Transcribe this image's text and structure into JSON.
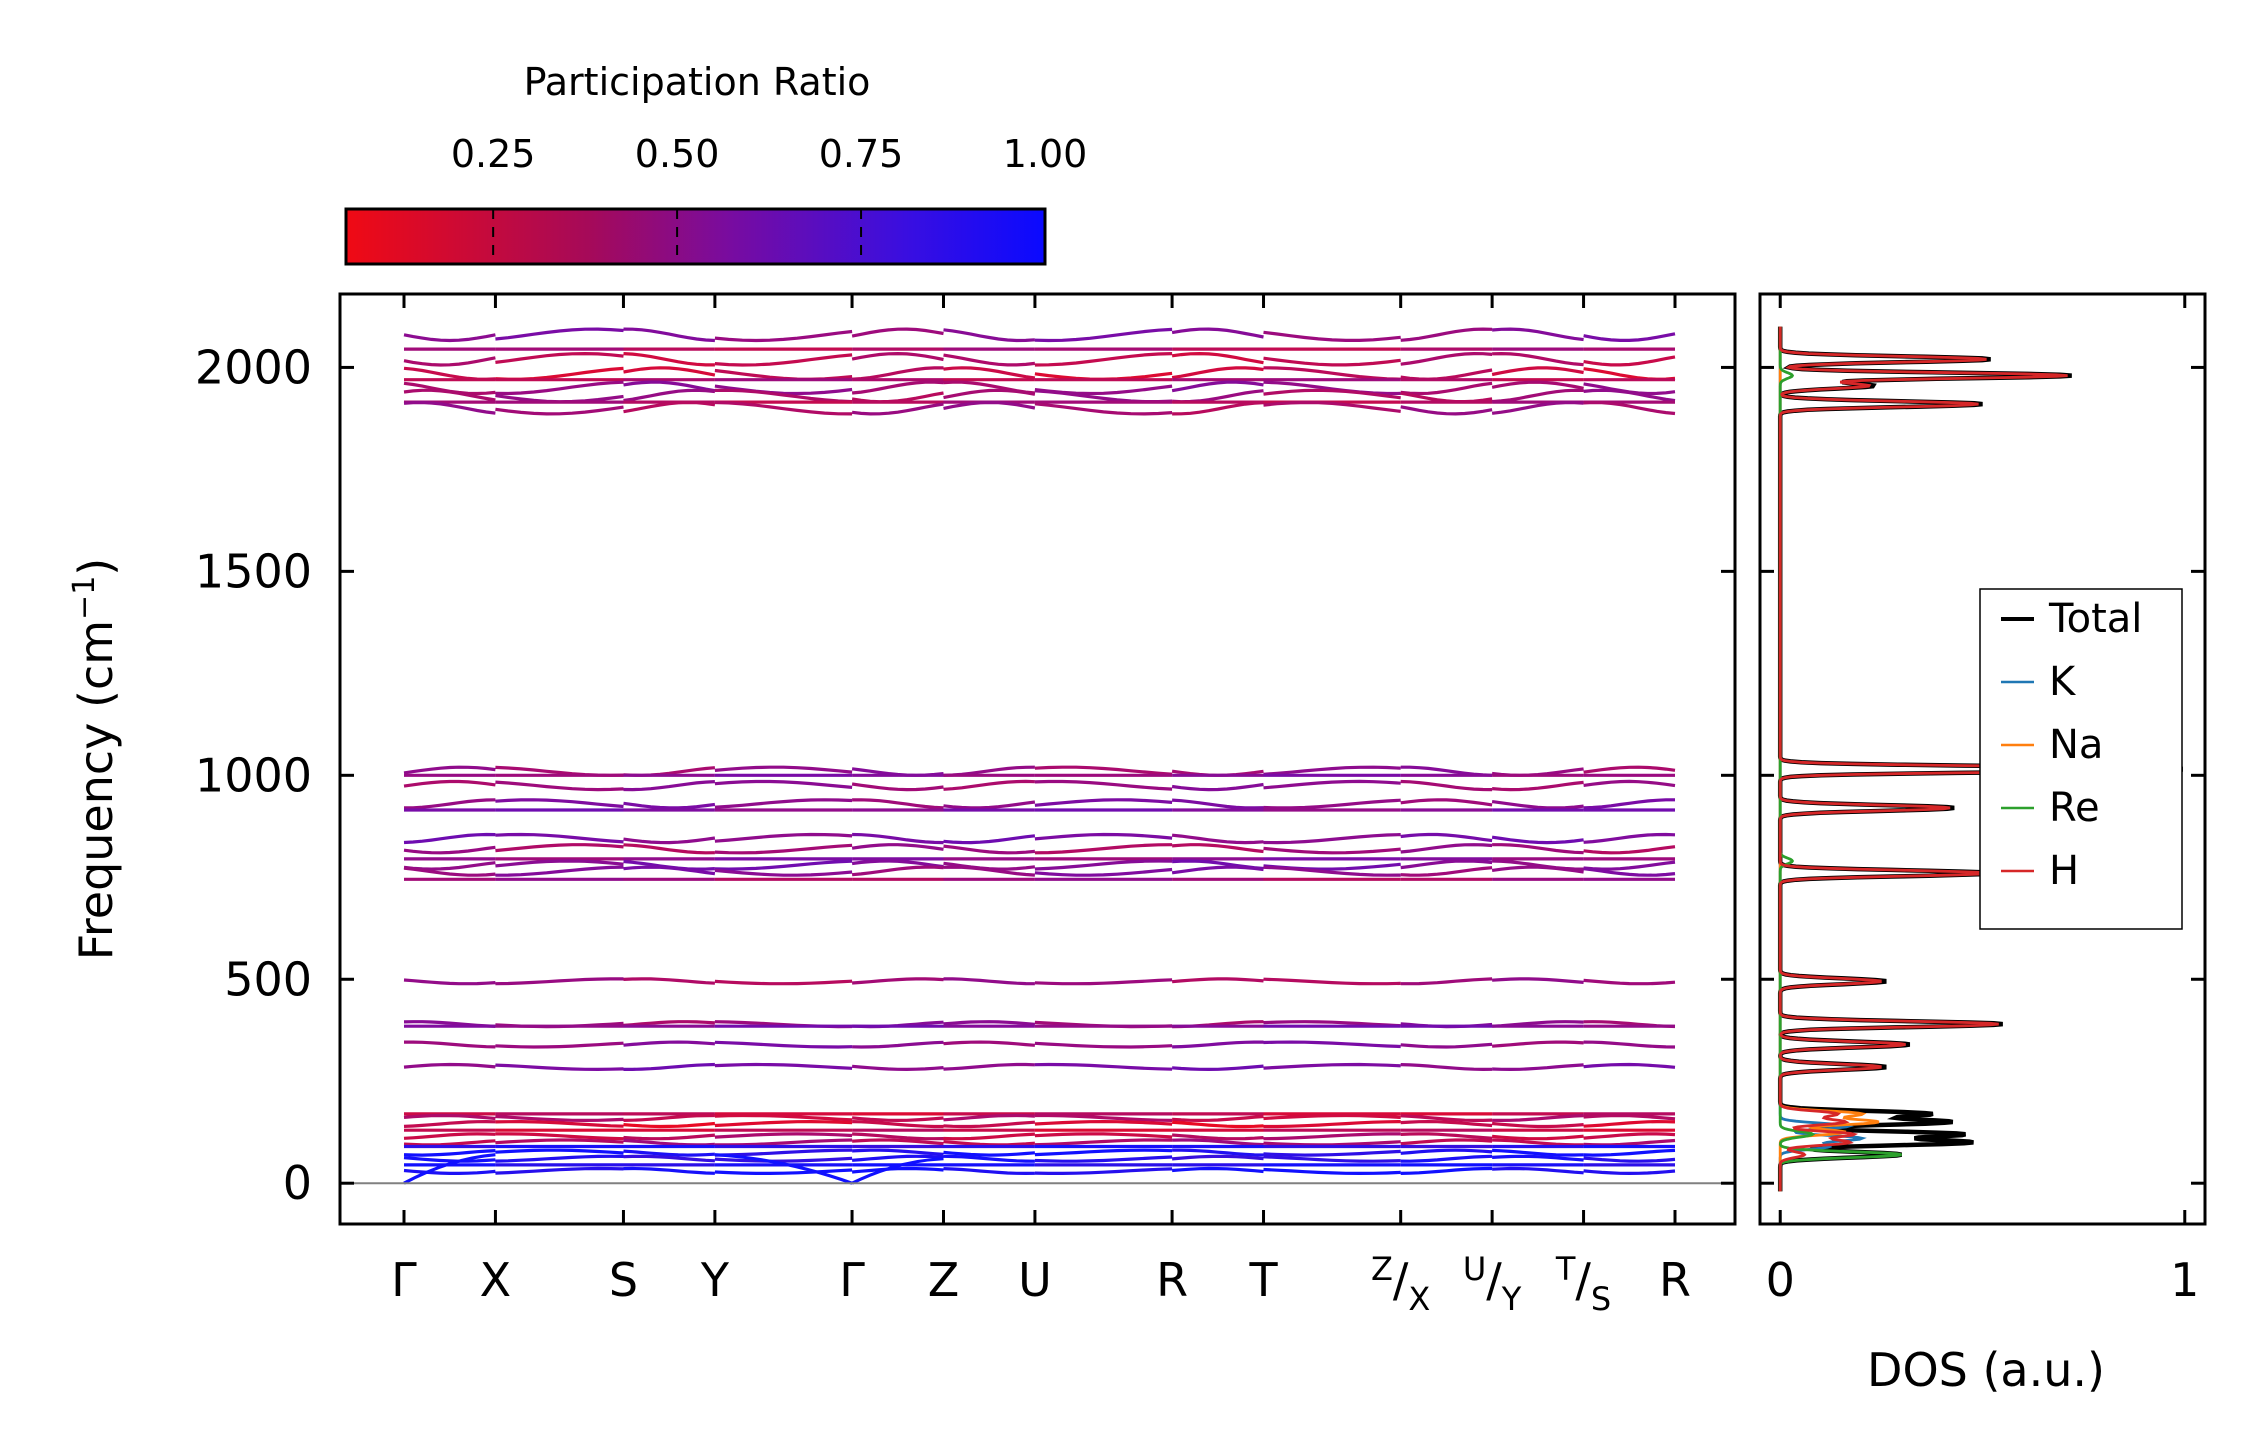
{
  "colorbar": {
    "title": "Participation Ratio",
    "ticks": [
      "0.25",
      "0.50",
      "0.75",
      "1.00"
    ],
    "tick_values": [
      0.25,
      0.5,
      0.75,
      1.0
    ],
    "range": [
      0.05,
      1.0
    ],
    "colors": {
      "low": "#ee0a1e",
      "mid": "#7a0ca6",
      "high": "#1010ff"
    }
  },
  "chart_data": [
    {
      "type": "line",
      "title": "",
      "ylabel": "Frequency (cm",
      "ylabel_sup": "−1",
      "ylabel_close": ")",
      "ylim": [
        -100,
        2180
      ],
      "yticks": [
        "0",
        "500",
        "1000",
        "1500",
        "2000"
      ],
      "ytick_values": [
        0,
        500,
        1000,
        1500,
        2000
      ],
      "kpath_labels": [
        {
          "main": "Γ"
        },
        {
          "main": "X"
        },
        {
          "main": "S"
        },
        {
          "main": "Y"
        },
        {
          "main": "Γ"
        },
        {
          "main": "Z"
        },
        {
          "main": "U"
        },
        {
          "main": "R"
        },
        {
          "main": "T"
        },
        {
          "sup": "Z",
          "main": "/",
          "sub": "X"
        },
        {
          "sup": "U",
          "main": "/",
          "sub": "Y"
        },
        {
          "sup": "T",
          "main": "/",
          "sub": "S"
        },
        {
          "main": "R"
        }
      ],
      "kpath_positions": [
        0,
        1,
        2.4,
        3.4,
        4.9,
        5.9,
        6.9,
        8.4,
        9.4,
        10.9,
        11.9,
        12.9,
        13.9
      ],
      "zero_line": 0,
      "bands": [
        {
          "freq": 2080,
          "pr": 0.45
        },
        {
          "freq": 2045,
          "pr": 0.3
        },
        {
          "freq": 2020,
          "pr": 0.25
        },
        {
          "freq": 1985,
          "pr": 0.2
        },
        {
          "freq": 1970,
          "pr": 0.3
        },
        {
          "freq": 1950,
          "pr": 0.4
        },
        {
          "freq": 1930,
          "pr": 0.35
        },
        {
          "freq": 1915,
          "pr": 0.3
        },
        {
          "freq": 1900,
          "pr": 0.35
        },
        {
          "freq": 1010,
          "pr": 0.4
        },
        {
          "freq": 1000,
          "pr": 0.45
        },
        {
          "freq": 975,
          "pr": 0.4
        },
        {
          "freq": 930,
          "pr": 0.45
        },
        {
          "freq": 915,
          "pr": 0.5
        },
        {
          "freq": 845,
          "pr": 0.5
        },
        {
          "freq": 820,
          "pr": 0.35
        },
        {
          "freq": 795,
          "pr": 0.45
        },
        {
          "freq": 780,
          "pr": 0.5
        },
        {
          "freq": 765,
          "pr": 0.45
        },
        {
          "freq": 745,
          "pr": 0.35
        },
        {
          "freq": 495,
          "pr": 0.35
        },
        {
          "freq": 390,
          "pr": 0.4
        },
        {
          "freq": 385,
          "pr": 0.5
        },
        {
          "freq": 340,
          "pr": 0.45
        },
        {
          "freq": 285,
          "pr": 0.5
        },
        {
          "freq": 170,
          "pr": 0.2
        },
        {
          "freq": 160,
          "pr": 0.25
        },
        {
          "freq": 145,
          "pr": 0.15
        },
        {
          "freq": 130,
          "pr": 0.2
        },
        {
          "freq": 115,
          "pr": 0.25
        },
        {
          "freq": 100,
          "pr": 0.3
        },
        {
          "freq": 90,
          "pr": 0.9
        },
        {
          "freq": 75,
          "pr": 0.95
        },
        {
          "freq": 60,
          "pr": 0.9
        },
        {
          "freq": 45,
          "pr": 0.95
        },
        {
          "freq": 30,
          "pr": 0.98
        }
      ]
    },
    {
      "type": "line",
      "title": "",
      "xlabel": "DOS (a.u.)",
      "xlim": [
        -0.05,
        1.05
      ],
      "xticks": [
        "0",
        "1"
      ],
      "xtick_values": [
        0,
        1
      ],
      "ylim": [
        -100,
        2180
      ],
      "legend_position": "center-right",
      "series": [
        {
          "name": "Total",
          "color": "#000000",
          "peaks": [
            [
              2020,
              0.52
            ],
            [
              1980,
              0.72
            ],
            [
              1955,
              0.23
            ],
            [
              1910,
              0.5
            ],
            [
              1015,
              1.0
            ],
            [
              920,
              0.43
            ],
            [
              760,
              0.53
            ],
            [
              495,
              0.26
            ],
            [
              390,
              0.55
            ],
            [
              340,
              0.32
            ],
            [
              285,
              0.26
            ],
            [
              170,
              0.37
            ],
            [
              150,
              0.42
            ],
            [
              120,
              0.45
            ],
            [
              100,
              0.47
            ],
            [
              70,
              0.3
            ]
          ]
        },
        {
          "name": "K",
          "color": "#1f77b4",
          "peaks": [
            [
              140,
              0.17
            ],
            [
              110,
              0.2
            ],
            [
              90,
              0.12
            ]
          ]
        },
        {
          "name": "Na",
          "color": "#ff7f0e",
          "peaks": [
            [
              170,
              0.2
            ],
            [
              150,
              0.24
            ],
            [
              125,
              0.16
            ]
          ]
        },
        {
          "name": "Re",
          "color": "#2ca02c",
          "peaks": [
            [
              1980,
              0.03
            ],
            [
              790,
              0.03
            ],
            [
              120,
              0.08
            ],
            [
              70,
              0.3
            ]
          ]
        },
        {
          "name": "H",
          "color": "#d62728",
          "peaks": [
            [
              2020,
              0.51
            ],
            [
              1980,
              0.71
            ],
            [
              1955,
              0.22
            ],
            [
              1910,
              0.49
            ],
            [
              1015,
              0.99
            ],
            [
              920,
              0.42
            ],
            [
              760,
              0.52
            ],
            [
              495,
              0.25
            ],
            [
              390,
              0.54
            ],
            [
              340,
              0.31
            ],
            [
              285,
              0.25
            ],
            [
              170,
              0.14
            ],
            [
              150,
              0.16
            ],
            [
              120,
              0.18
            ],
            [
              100,
              0.17
            ],
            [
              70,
              0.06
            ]
          ]
        }
      ]
    }
  ]
}
